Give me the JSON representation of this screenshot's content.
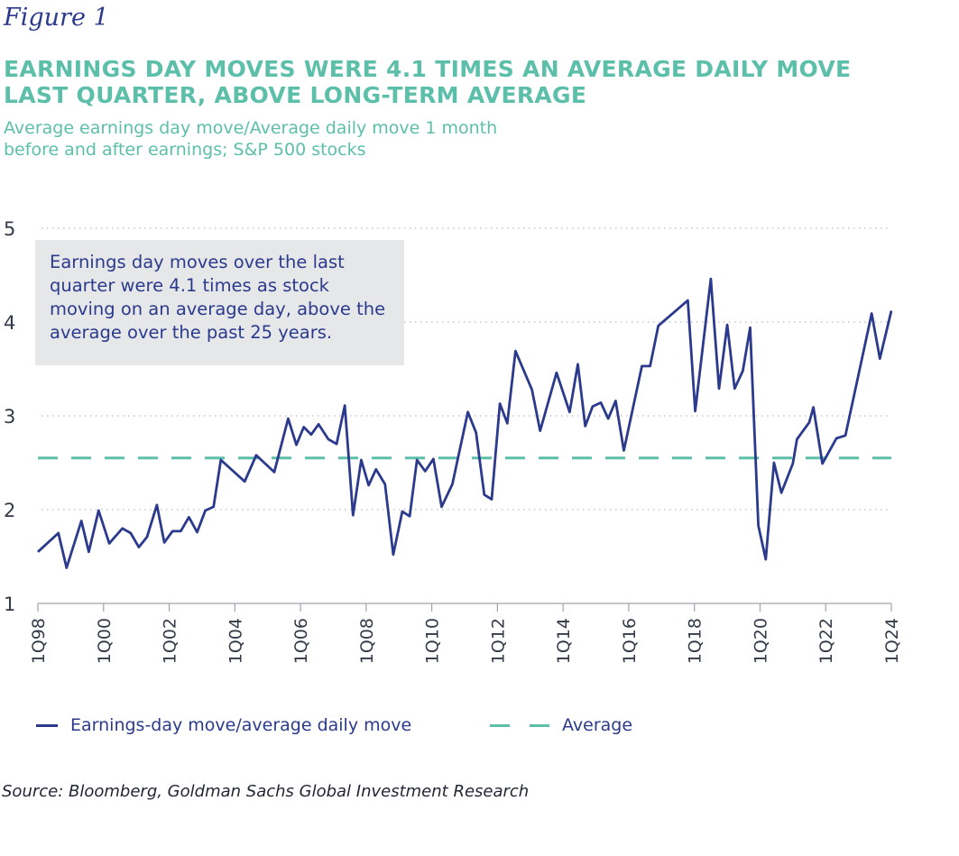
{
  "figure_label": "Figure 1",
  "title": "EARNINGS DAY MOVES WERE 4.1 TIMES AN AVERAGE DAILY MOVE LAST QUARTER, ABOVE LONG-TERM AVERAGE",
  "subtitle_line1": "Average earnings day move/Average daily move 1 month",
  "subtitle_line2": "before and after earnings; S&P 500 stocks",
  "annotation": "Earnings day moves over the last quarter were 4.1 times as stock moving on an average day, above the average over the past 25 years.",
  "source": "Source: Bloomberg, Goldman Sachs Global Investment Research",
  "colors": {
    "series": "#2b3a8c",
    "average": "#5cbfa9",
    "annotation_bg": "#e6e7e9"
  },
  "chart_data": {
    "type": "line",
    "title": "EARNINGS DAY MOVES WERE 4.1 TIMES AN AVERAGE DAILY MOVE LAST QUARTER, ABOVE LONG-TERM AVERAGE",
    "xlabel": "",
    "ylabel": "",
    "ylim": [
      1,
      5
    ],
    "yticks": [
      "1",
      "2",
      "3",
      "4",
      "5"
    ],
    "xlim": [
      0,
      104
    ],
    "xticks": [
      {
        "label": "1Q98",
        "x": 0
      },
      {
        "label": "1Q00",
        "x": 8
      },
      {
        "label": "1Q02",
        "x": 16
      },
      {
        "label": "1Q04",
        "x": 24
      },
      {
        "label": "1Q06",
        "x": 32
      },
      {
        "label": "1Q08",
        "x": 40
      },
      {
        "label": "1Q10",
        "x": 48
      },
      {
        "label": "1Q12",
        "x": 56
      },
      {
        "label": "1Q14",
        "x": 64
      },
      {
        "label": "1Q16",
        "x": 72
      },
      {
        "label": "1Q18",
        "x": 80
      },
      {
        "label": "1Q20",
        "x": 88
      },
      {
        "label": "1Q22",
        "x": 96
      },
      {
        "label": "1Q24",
        "x": 104
      }
    ],
    "grid": "horizontal dotted",
    "legend_position": "bottom",
    "series": [
      {
        "name": "Earnings-day move/average daily move",
        "style": "solid",
        "points": [
          [
            0,
            1.55
          ],
          [
            2.5,
            1.75
          ],
          [
            3.5,
            1.38
          ],
          [
            5.3,
            1.88
          ],
          [
            6.2,
            1.55
          ],
          [
            7.4,
            1.99
          ],
          [
            8.7,
            1.64
          ],
          [
            10.3,
            1.8
          ],
          [
            11.3,
            1.75
          ],
          [
            12.3,
            1.6
          ],
          [
            13.3,
            1.71
          ],
          [
            14.5,
            2.05
          ],
          [
            15.4,
            1.65
          ],
          [
            16.4,
            1.77
          ],
          [
            17.4,
            1.77
          ],
          [
            18.4,
            1.92
          ],
          [
            19.4,
            1.76
          ],
          [
            20.4,
            1.99
          ],
          [
            21.4,
            2.03
          ],
          [
            22.3,
            2.53
          ],
          [
            25.2,
            2.3
          ],
          [
            26.6,
            2.58
          ],
          [
            28.8,
            2.4
          ],
          [
            30.5,
            2.97
          ],
          [
            31.5,
            2.69
          ],
          [
            32.4,
            2.88
          ],
          [
            33.3,
            2.8
          ],
          [
            34.2,
            2.91
          ],
          [
            35.4,
            2.75
          ],
          [
            36.4,
            2.7
          ],
          [
            37.4,
            3.11
          ],
          [
            38.4,
            1.94
          ],
          [
            39.4,
            2.53
          ],
          [
            40.3,
            2.26
          ],
          [
            41.2,
            2.43
          ],
          [
            42.3,
            2.27
          ],
          [
            43.3,
            1.52
          ],
          [
            44.4,
            1.98
          ],
          [
            45.3,
            1.93
          ],
          [
            46.2,
            2.53
          ],
          [
            47.2,
            2.41
          ],
          [
            48.2,
            2.54
          ],
          [
            49.2,
            2.03
          ],
          [
            50.5,
            2.27
          ],
          [
            52.4,
            3.04
          ],
          [
            53.4,
            2.82
          ],
          [
            54.4,
            2.16
          ],
          [
            55.3,
            2.11
          ],
          [
            56.3,
            3.13
          ],
          [
            57.2,
            2.92
          ],
          [
            58.2,
            3.69
          ],
          [
            60.2,
            3.28
          ],
          [
            61.2,
            2.84
          ],
          [
            63.2,
            3.46
          ],
          [
            64.8,
            3.04
          ],
          [
            65.8,
            3.55
          ],
          [
            66.7,
            2.89
          ],
          [
            67.6,
            3.1
          ],
          [
            68.6,
            3.14
          ],
          [
            69.5,
            2.97
          ],
          [
            70.4,
            3.16
          ],
          [
            71.4,
            2.63
          ],
          [
            73.6,
            3.53
          ],
          [
            74.6,
            3.53
          ],
          [
            75.6,
            3.96
          ],
          [
            79.2,
            4.23
          ],
          [
            80.1,
            3.05
          ],
          [
            82.0,
            4.46
          ],
          [
            83.0,
            3.29
          ],
          [
            84.0,
            3.97
          ],
          [
            84.9,
            3.29
          ],
          [
            85.9,
            3.48
          ],
          [
            86.8,
            3.94
          ],
          [
            87.8,
            1.83
          ],
          [
            88.7,
            1.47
          ],
          [
            89.7,
            2.5
          ],
          [
            90.6,
            2.18
          ],
          [
            92.0,
            2.49
          ],
          [
            92.5,
            2.75
          ],
          [
            94.0,
            2.93
          ],
          [
            94.5,
            3.09
          ],
          [
            95.6,
            2.49
          ],
          [
            97.3,
            2.76
          ],
          [
            98.4,
            2.79
          ],
          [
            101.6,
            4.09
          ],
          [
            102.6,
            3.61
          ],
          [
            104.0,
            4.12
          ]
        ]
      },
      {
        "name": "Average",
        "style": "dashed",
        "value": 2.55
      }
    ]
  }
}
